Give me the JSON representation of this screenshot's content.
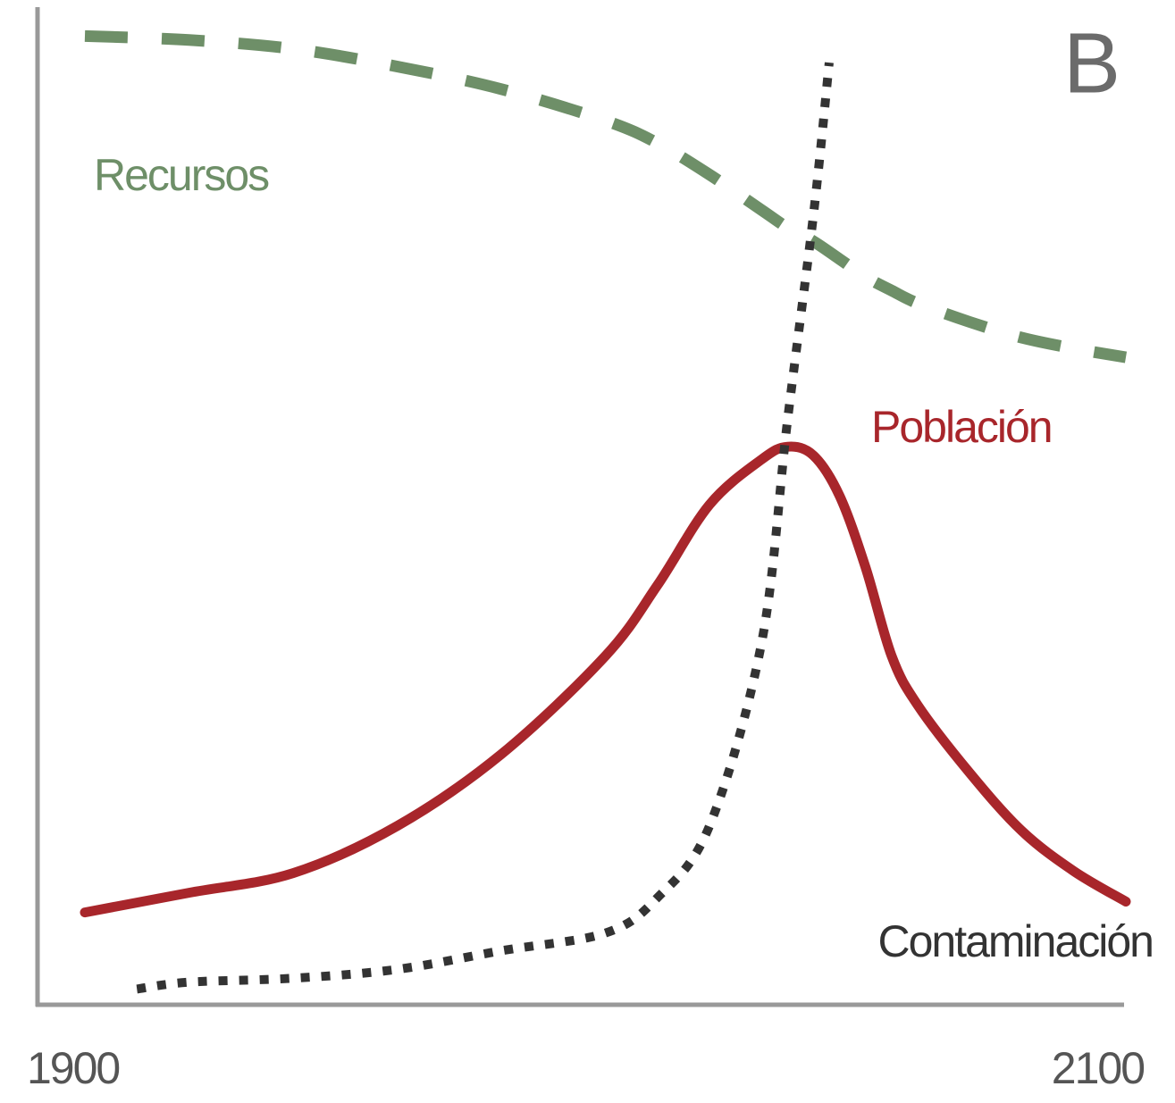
{
  "chart_data": {
    "type": "line",
    "panel_label": "B",
    "xlim": [
      1900,
      2100
    ],
    "ylim": [
      0,
      100
    ],
    "xticks": [
      1900,
      2100
    ],
    "series": [
      {
        "name": "Recursos",
        "color": "#6e8f68",
        "dash": "dashed",
        "x": [
          1900,
          1920,
          1940,
          1960,
          1980,
          2000,
          2010,
          2020,
          2030,
          2035,
          2040,
          2045,
          2050,
          2055,
          2060,
          2070,
          2080,
          2090,
          2100
        ],
        "values": [
          98.6,
          98.2,
          97.3,
          95.5,
          93.2,
          90,
          87.7,
          84.5,
          80.9,
          79.1,
          77.7,
          75.9,
          74.1,
          72.7,
          71.4,
          69.5,
          67.9,
          66.8,
          65.9
        ]
      },
      {
        "name": "Población",
        "color": "#a8262b",
        "dash": "solid",
        "x": [
          1900,
          1920,
          1940,
          1960,
          1980,
          2000,
          2010,
          2020,
          2030,
          2035,
          2040,
          2045,
          2050,
          2055,
          2060,
          2070,
          2080,
          2090,
          2100
        ],
        "values": [
          9.4,
          11.4,
          13.4,
          18.2,
          25.5,
          35.5,
          42.7,
          50.9,
          55.5,
          56.8,
          55.9,
          51.8,
          44.5,
          35.5,
          30.5,
          23.6,
          17.7,
          13.6,
          10.5
        ]
      },
      {
        "name": "Contaminación",
        "color": "#333333",
        "dash": "dotted",
        "x": [
          1910,
          1920,
          1940,
          1960,
          1980,
          2000,
          2010,
          2020,
          2030,
          2035,
          2040,
          2043
        ],
        "values": [
          1.6,
          2.3,
          2.7,
          3.6,
          5.5,
          7.3,
          10.9,
          18.2,
          36.8,
          59.5,
          80.5,
          95.9
        ]
      }
    ]
  }
}
